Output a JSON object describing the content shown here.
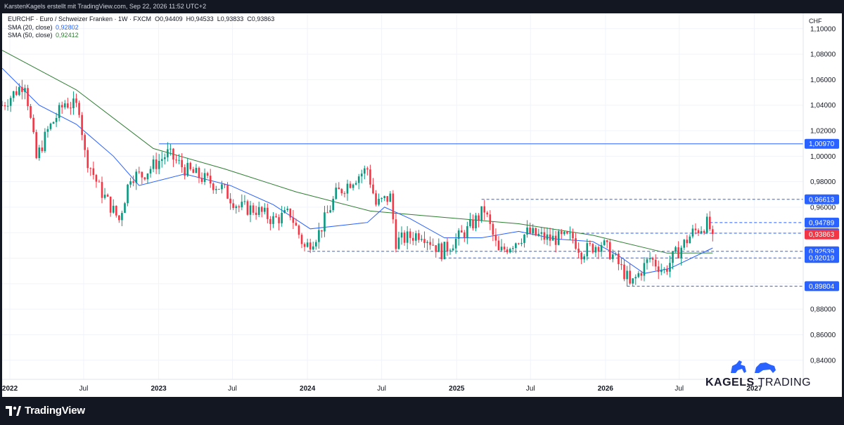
{
  "header": {
    "text": "KarstenKagels erstellt mit TradingView.com, Sep 22, 2026 11:52 UTC+2"
  },
  "legend": {
    "symbol_line": "EURCHF · Euro / Schweizer Franken · 1W · FXCM",
    "ohlc": {
      "O": "0,94409",
      "H": "0,94533",
      "L": "0,93833",
      "C": "0,93863"
    },
    "sma20_label": "SMA (20, close)",
    "sma20_value": "0,92802",
    "sma50_label": "SMA (50, close)",
    "sma50_value": "0,92412"
  },
  "colors": {
    "up": "#089981",
    "down": "#f23645",
    "sma20": "#2962ff",
    "sma50": "#2e7d32",
    "level": "#2962ff",
    "last": "#f23645"
  },
  "footer": {
    "brand": "TradingView"
  },
  "watermark": {
    "part1": "KAGELS",
    "part2": "TRADING",
    "icon": "bull-bear-icon"
  },
  "chart_data": {
    "type": "candlestick",
    "title": "EURCHF · Euro / Schweizer Franken · 1W · FXCM",
    "xlabel": "",
    "ylabel": "CHF",
    "ylim": [
      0.825,
      1.112
    ],
    "y_ticks": [
      "1,10000",
      "1,08000",
      "1,06000",
      "1,04000",
      "1,02000",
      "1,00000",
      "0,98000",
      "0,96000",
      "0,94000",
      "0,92000",
      "0,90000",
      "0,88000",
      "0,86000",
      "0,84000"
    ],
    "y_tick_values": [
      1.1,
      1.08,
      1.06,
      1.04,
      1.02,
      1.0,
      0.98,
      0.96,
      0.94,
      0.92,
      0.9,
      0.88,
      0.86,
      0.84
    ],
    "x_ticks": [
      "2022",
      "Jul",
      "2023",
      "Jul",
      "2024",
      "Jul",
      "2025",
      "Jul",
      "2026",
      "Jul",
      "2027"
    ],
    "x_tick_dates": [
      "2022-01-01",
      "2022-07-01",
      "2023-01-01",
      "2023-07-01",
      "2024-01-01",
      "2024-07-01",
      "2025-01-01",
      "2025-07-01",
      "2026-01-01",
      "2026-07-01",
      "2027-01-01"
    ],
    "x_range": [
      "2021-12-13",
      "2027-05-01"
    ],
    "grid": true,
    "path_points": [
      [
        "2021-12-13",
        1.04
      ],
      [
        "2022-02-07",
        1.058
      ],
      [
        "2022-03-07",
        0.998
      ],
      [
        "2022-04-04",
        1.02
      ],
      [
        "2022-05-16",
        1.042
      ],
      [
        "2022-06-20",
        1.038
      ],
      [
        "2022-07-04",
        1.002
      ],
      [
        "2022-08-08",
        0.975
      ],
      [
        "2022-09-26",
        0.95
      ],
      [
        "2022-10-24",
        0.985
      ],
      [
        "2022-11-21",
        0.985
      ],
      [
        "2023-01-23",
        1.002
      ],
      [
        "2023-03-06",
        0.99
      ],
      [
        "2023-04-17",
        0.983
      ],
      [
        "2023-06-05",
        0.975
      ],
      [
        "2023-07-17",
        0.96
      ],
      [
        "2023-08-28",
        0.958
      ],
      [
        "2023-10-09",
        0.95
      ],
      [
        "2023-11-20",
        0.955
      ],
      [
        "2023-12-25",
        0.928
      ],
      [
        "2024-01-29",
        0.94
      ],
      [
        "2024-03-11",
        0.97
      ],
      [
        "2024-04-22",
        0.982
      ],
      [
        "2024-05-27",
        0.99
      ],
      [
        "2024-06-17",
        0.962
      ],
      [
        "2024-07-22",
        0.968
      ],
      [
        "2024-08-05",
        0.933
      ],
      [
        "2024-10-07",
        0.94
      ],
      [
        "2024-11-25",
        0.925
      ],
      [
        "2025-01-27",
        0.942
      ],
      [
        "2025-03-10",
        0.958
      ],
      [
        "2025-04-14",
        0.924
      ],
      [
        "2025-06-23",
        0.94
      ],
      [
        "2025-08-18",
        0.935
      ],
      [
        "2025-10-13",
        0.936
      ],
      [
        "2025-11-03",
        0.925
      ],
      [
        "2025-12-22",
        0.932
      ],
      [
        "2026-01-19",
        0.922
      ],
      [
        "2026-02-23",
        0.905
      ],
      [
        "2026-03-02",
        0.898
      ],
      [
        "2026-04-20",
        0.92
      ],
      [
        "2026-05-25",
        0.91
      ],
      [
        "2026-06-15",
        0.92
      ],
      [
        "2026-08-03",
        0.94
      ],
      [
        "2026-09-07",
        0.947
      ],
      [
        "2026-09-21",
        0.939
      ]
    ],
    "sma20": [
      [
        "2021-12-13",
        1.069
      ],
      [
        "2022-03-14",
        1.04
      ],
      [
        "2022-06-13",
        1.025
      ],
      [
        "2022-09-12",
        1.0
      ],
      [
        "2022-11-14",
        0.977
      ],
      [
        "2023-03-06",
        0.986
      ],
      [
        "2023-06-26",
        0.977
      ],
      [
        "2023-10-09",
        0.962
      ],
      [
        "2024-01-08",
        0.943
      ],
      [
        "2024-05-27",
        0.948
      ],
      [
        "2024-07-08",
        0.96
      ],
      [
        "2024-09-09",
        0.951
      ],
      [
        "2024-12-02",
        0.936
      ],
      [
        "2025-03-03",
        0.936
      ],
      [
        "2025-06-02",
        0.941
      ],
      [
        "2025-09-01",
        0.935
      ],
      [
        "2025-12-01",
        0.933
      ],
      [
        "2026-02-02",
        0.922
      ],
      [
        "2026-04-06",
        0.908
      ],
      [
        "2026-06-08",
        0.912
      ],
      [
        "2026-09-21",
        0.92802
      ]
    ],
    "sma50": [
      [
        "2021-12-13",
        1.083
      ],
      [
        "2022-06-13",
        1.052
      ],
      [
        "2022-12-19",
        1.006
      ],
      [
        "2023-06-12",
        0.99
      ],
      [
        "2023-12-04",
        0.972
      ],
      [
        "2024-06-03",
        0.957
      ],
      [
        "2024-12-02",
        0.952
      ],
      [
        "2025-06-02",
        0.947
      ],
      [
        "2025-12-01",
        0.938
      ],
      [
        "2026-06-01",
        0.924
      ],
      [
        "2026-09-21",
        0.92412
      ]
    ],
    "levels": [
      {
        "label": "1,00970",
        "value": 1.0097,
        "style": "solid",
        "from": "2023-01-02"
      },
      {
        "label": "0,96613",
        "value": 0.96613,
        "style": "dashed",
        "from": "2025-03-03"
      },
      {
        "label": "0,94789",
        "value": 0.94789,
        "style": "dashed",
        "from": "2026-09-14"
      },
      {
        "label": "0,93957",
        "value": 0.93957,
        "style": "dashed",
        "from": "2025-11-03"
      },
      {
        "label": "0,92539",
        "value": 0.92539,
        "style": "dashed",
        "from": "2024-01-01"
      },
      {
        "label": "0,92019",
        "value": 0.92019,
        "style": "dashed",
        "from": "2024-11-18"
      },
      {
        "label": "0,89804",
        "value": 0.89804,
        "style": "dashed",
        "from": "2026-02-23"
      }
    ],
    "last_price": {
      "label": "0,93863",
      "value": 0.93863
    },
    "axis_unit": "CHF"
  }
}
